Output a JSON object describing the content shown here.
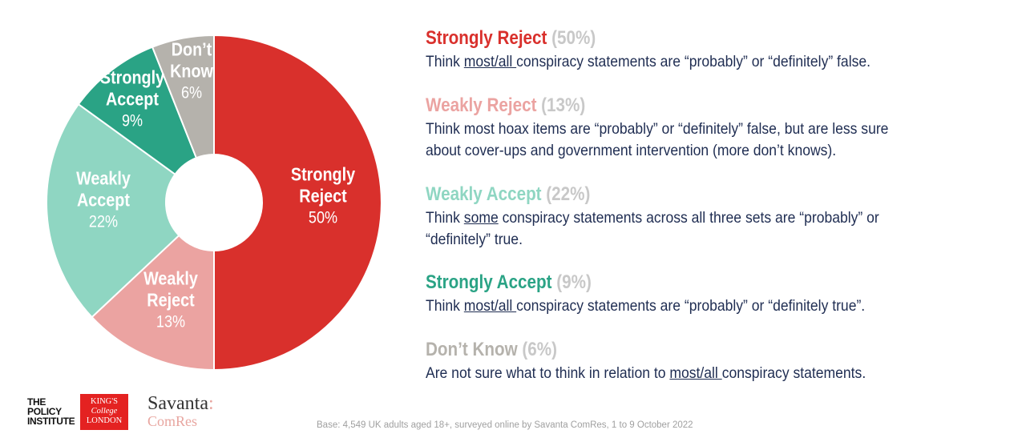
{
  "chart_data": {
    "type": "pie",
    "title": "",
    "hole": true,
    "series": [
      {
        "name": "Strongly Reject",
        "label_lines": [
          "Strongly",
          "Reject"
        ],
        "value": 50,
        "percent_label": "50%",
        "color": "#d9302c"
      },
      {
        "name": "Weakly Reject",
        "label_lines": [
          "Weakly",
          "Reject"
        ],
        "value": 13,
        "percent_label": "13%",
        "color": "#eba3a1"
      },
      {
        "name": "Weakly Accept",
        "label_lines": [
          "Weakly",
          "Accept"
        ],
        "value": 22,
        "percent_label": "22%",
        "color": "#8fd6c2"
      },
      {
        "name": "Strongly Accept",
        "label_lines": [
          "Strongly",
          "Accept"
        ],
        "value": 9,
        "percent_label": "9%",
        "color": "#2aa385"
      },
      {
        "name": "Don't Know",
        "label_lines": [
          "Don’t",
          "Know"
        ],
        "value": 6,
        "percent_label": "6%",
        "color": "#b5b2ac"
      }
    ]
  },
  "legend": [
    {
      "title": "Strongly Reject",
      "pct": "(50%)",
      "color": "#d9302c",
      "parts": [
        [
          "t",
          "Think "
        ],
        [
          "u",
          "most/all "
        ],
        [
          "t",
          "conspiracy statements are “probably” or “definitely” false."
        ]
      ]
    },
    {
      "title": "Weakly Reject",
      "pct": "(13%)",
      "color": "#eba3a1",
      "parts": [
        [
          "t",
          "Think most hoax items are “probably” or “definitely” false, but are less sure about cover-ups and government intervention (more don’t knows)."
        ]
      ]
    },
    {
      "title": "Weakly Accept",
      "pct": "(22%)",
      "color": "#8fd6c2",
      "parts": [
        [
          "t",
          "Think "
        ],
        [
          "u",
          "some"
        ],
        [
          "t",
          " conspiracy statements across all three sets are “probably” or “definitely” true."
        ]
      ]
    },
    {
      "title": "Strongly Accept",
      "pct": "(9%)",
      "color": "#2aa385",
      "parts": [
        [
          "t",
          "Think "
        ],
        [
          "u",
          "most/all "
        ],
        [
          "t",
          "conspiracy statements are “probably” or “definitely true”."
        ]
      ]
    },
    {
      "title": "Don’t Know",
      "pct": "(6%)",
      "color": "#b5b2ac",
      "parts": [
        [
          "t",
          "Are not sure what to think in relation to "
        ],
        [
          "u",
          "most/all "
        ],
        [
          "t",
          "conspiracy statements."
        ]
      ]
    }
  ],
  "logos": {
    "policy_institute": [
      "THE",
      "POLICY",
      "INSTITUTE"
    ],
    "kings_college": [
      "KING'S",
      "College",
      "LONDON"
    ],
    "savanta": "Savanta",
    "savanta_colon": ":",
    "comres": "ComRes"
  },
  "footer": {
    "base_note": "Base: 4,549 UK adults aged 18+, surveyed online by Savanta ComRes, 1 to 9 October 2022"
  }
}
